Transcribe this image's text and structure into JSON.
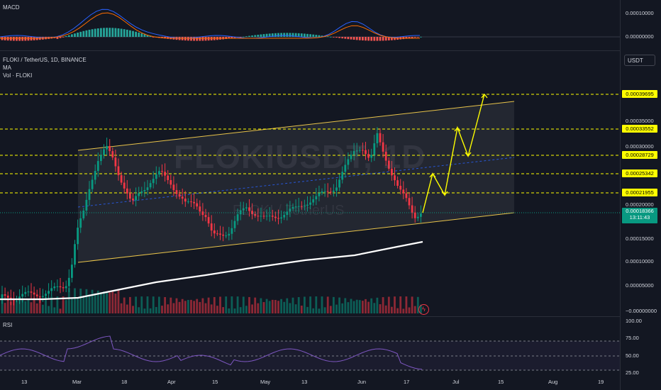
{
  "symbol_line": "FLOKI / TetherUS, 1D, BINANCE",
  "indicators": {
    "ma": "MA",
    "vol": "Vol · FLOKI",
    "macd": "MACD",
    "rsi": "RSI"
  },
  "watermark": {
    "ticker": "FLOKIUSDT, 1D",
    "name": "FLOKI / TetherUS"
  },
  "currency_button": "USDT",
  "price_axis": [
    {
      "label": "0.00035000"
    },
    {
      "label": "0.00030000"
    },
    {
      "label": "0.00020000"
    },
    {
      "label": "0.00015000"
    },
    {
      "label": "0.00010000"
    },
    {
      "label": "0.00005000"
    },
    {
      "label": "−0.00000000"
    }
  ],
  "level_tags": [
    "0.00039695",
    "0.00033552",
    "0.00028729",
    "0.00025342",
    "0.00021955"
  ],
  "current_price": {
    "value": "0.00018366",
    "countdown": "13:11:43"
  },
  "macd_axis": [
    "0.00010000",
    "0.00000000"
  ],
  "rsi_axis": [
    "100.00",
    "75.00",
    "50.00",
    "25.00"
  ],
  "time_axis": [
    "13",
    "Mar",
    "18",
    "Apr",
    "15",
    "May",
    "13",
    "Jun",
    "17",
    "Jul",
    "15",
    "Aug",
    "19"
  ],
  "colors": {
    "up": "#089981",
    "down": "#f23645",
    "level": "#ffff00",
    "channel": "#e8c34a",
    "rsi": "#7e57c2",
    "macd": "#2962ff",
    "signal": "#ff6d00"
  }
}
